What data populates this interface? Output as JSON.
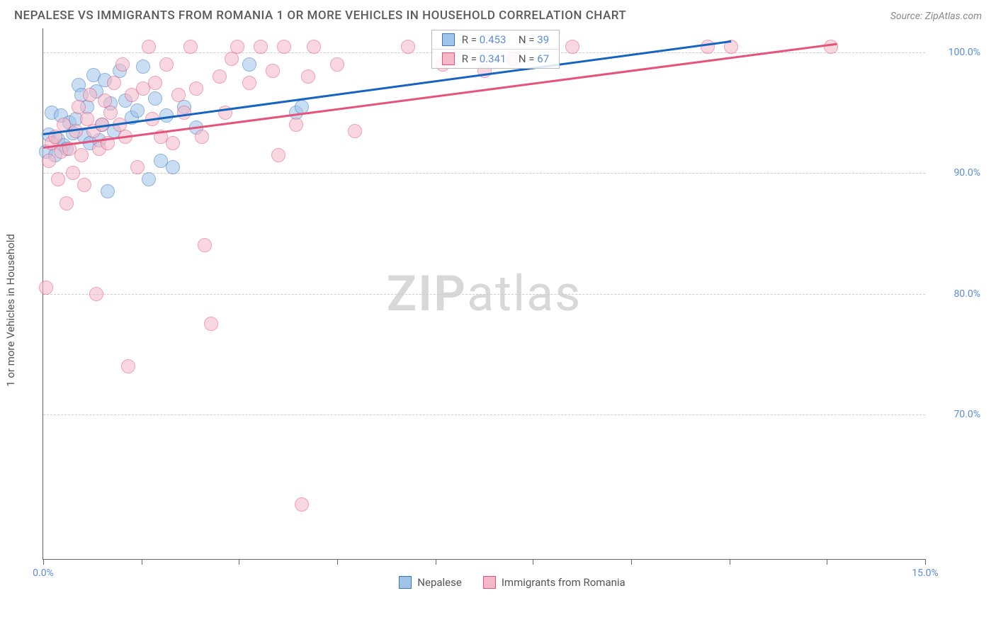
{
  "header": {
    "title": "NEPALESE VS IMMIGRANTS FROM ROMANIA 1 OR MORE VEHICLES IN HOUSEHOLD CORRELATION CHART",
    "source": "Source: ZipAtlas.com"
  },
  "chart": {
    "type": "scatter",
    "ylabel": "1 or more Vehicles in Household",
    "watermark_zip": "ZIP",
    "watermark_atlas": "atlas",
    "xlim": [
      0,
      15
    ],
    "ylim": [
      58,
      102
    ],
    "xticks": [
      {
        "v": 0,
        "label": "0.0%"
      },
      {
        "v": 1.67,
        "label": ""
      },
      {
        "v": 3.33,
        "label": ""
      },
      {
        "v": 5.0,
        "label": ""
      },
      {
        "v": 6.67,
        "label": ""
      },
      {
        "v": 8.33,
        "label": ""
      },
      {
        "v": 10.0,
        "label": ""
      },
      {
        "v": 11.67,
        "label": ""
      },
      {
        "v": 13.33,
        "label": ""
      },
      {
        "v": 15.0,
        "label": "15.0%"
      }
    ],
    "yticks": [
      {
        "v": 70,
        "label": "70.0%"
      },
      {
        "v": 80,
        "label": "80.0%"
      },
      {
        "v": 90,
        "label": "90.0%"
      },
      {
        "v": 100,
        "label": "100.0%"
      }
    ],
    "grid_color": "#cccccc",
    "background_color": "#ffffff",
    "marker_radius": 10,
    "marker_opacity": 0.55,
    "series": [
      {
        "name": "Nepalese",
        "fill": "#9ec4e8",
        "stroke": "#3a75c4",
        "trend_color": "#1565c0",
        "R": "0.453",
        "N": "39",
        "trend": {
          "x1": 0,
          "y1": 93.3,
          "x2": 11.7,
          "y2": 101.0
        },
        "points": [
          [
            0.05,
            91.8
          ],
          [
            0.1,
            93.2
          ],
          [
            0.15,
            95.0
          ],
          [
            0.2,
            91.5
          ],
          [
            0.25,
            92.8
          ],
          [
            0.3,
            94.8
          ],
          [
            0.35,
            92.3
          ],
          [
            0.4,
            92.0
          ],
          [
            0.45,
            94.2
          ],
          [
            0.5,
            93.3
          ],
          [
            0.55,
            94.5
          ],
          [
            0.6,
            97.3
          ],
          [
            0.65,
            96.5
          ],
          [
            0.7,
            93.0
          ],
          [
            0.75,
            95.5
          ],
          [
            0.8,
            92.5
          ],
          [
            0.85,
            98.1
          ],
          [
            0.9,
            96.8
          ],
          [
            0.95,
            92.7
          ],
          [
            1.0,
            94.0
          ],
          [
            1.05,
            97.7
          ],
          [
            1.1,
            88.5
          ],
          [
            1.15,
            95.8
          ],
          [
            1.2,
            93.5
          ],
          [
            1.3,
            98.5
          ],
          [
            1.4,
            96.0
          ],
          [
            1.5,
            94.6
          ],
          [
            1.6,
            95.2
          ],
          [
            1.7,
            98.8
          ],
          [
            1.8,
            89.5
          ],
          [
            1.9,
            96.2
          ],
          [
            2.0,
            91.0
          ],
          [
            2.1,
            94.8
          ],
          [
            2.2,
            90.5
          ],
          [
            2.4,
            95.5
          ],
          [
            2.6,
            93.8
          ],
          [
            3.5,
            99.0
          ],
          [
            4.3,
            95.0
          ],
          [
            4.4,
            95.5
          ]
        ]
      },
      {
        "name": "Immigrants from Romania",
        "fill": "#f5b8c8",
        "stroke": "#e6537a",
        "trend_color": "#e6537a",
        "R": "0.341",
        "N": "67",
        "trend": {
          "x1": 0,
          "y1": 92.2,
          "x2": 13.5,
          "y2": 100.8
        },
        "points": [
          [
            0.05,
            80.5
          ],
          [
            0.1,
            91.0
          ],
          [
            0.15,
            92.5
          ],
          [
            0.2,
            93.0
          ],
          [
            0.25,
            89.5
          ],
          [
            0.3,
            91.8
          ],
          [
            0.35,
            94.0
          ],
          [
            0.4,
            87.5
          ],
          [
            0.45,
            92.0
          ],
          [
            0.5,
            90.0
          ],
          [
            0.55,
            93.5
          ],
          [
            0.6,
            95.5
          ],
          [
            0.65,
            91.5
          ],
          [
            0.7,
            89.0
          ],
          [
            0.75,
            94.5
          ],
          [
            0.8,
            96.5
          ],
          [
            0.85,
            93.5
          ],
          [
            0.9,
            80.0
          ],
          [
            0.95,
            92.0
          ],
          [
            1.0,
            94.0
          ],
          [
            1.05,
            96.0
          ],
          [
            1.1,
            92.5
          ],
          [
            1.15,
            95.0
          ],
          [
            1.2,
            97.5
          ],
          [
            1.3,
            94.0
          ],
          [
            1.35,
            99.0
          ],
          [
            1.4,
            93.0
          ],
          [
            1.45,
            74.0
          ],
          [
            1.5,
            96.5
          ],
          [
            1.6,
            90.5
          ],
          [
            1.7,
            97.0
          ],
          [
            1.8,
            100.5
          ],
          [
            1.85,
            94.5
          ],
          [
            1.9,
            97.5
          ],
          [
            2.0,
            93.0
          ],
          [
            2.1,
            99.0
          ],
          [
            2.2,
            92.5
          ],
          [
            2.3,
            96.5
          ],
          [
            2.4,
            95.0
          ],
          [
            2.5,
            100.5
          ],
          [
            2.6,
            97.0
          ],
          [
            2.7,
            93.0
          ],
          [
            2.75,
            84.0
          ],
          [
            2.85,
            77.5
          ],
          [
            3.0,
            98.0
          ],
          [
            3.1,
            95.0
          ],
          [
            3.2,
            99.5
          ],
          [
            3.3,
            100.5
          ],
          [
            3.5,
            97.5
          ],
          [
            3.7,
            100.5
          ],
          [
            3.9,
            98.5
          ],
          [
            4.0,
            91.5
          ],
          [
            4.1,
            100.5
          ],
          [
            4.3,
            94.0
          ],
          [
            4.4,
            62.5
          ],
          [
            4.6,
            100.5
          ],
          [
            5.0,
            99.0
          ],
          [
            5.3,
            93.5
          ],
          [
            6.2,
            100.5
          ],
          [
            6.8,
            99.0
          ],
          [
            7.5,
            98.5
          ],
          [
            8.0,
            99.5
          ],
          [
            9.0,
            100.5
          ],
          [
            11.3,
            100.5
          ],
          [
            11.7,
            100.5
          ],
          [
            13.4,
            100.5
          ],
          [
            4.5,
            98.0
          ]
        ]
      }
    ],
    "r_legend": {
      "r_label": "R =",
      "n_label": "N ="
    },
    "bottom_legend": {
      "items": [
        "Nepalese",
        "Immigrants from Romania"
      ]
    }
  }
}
